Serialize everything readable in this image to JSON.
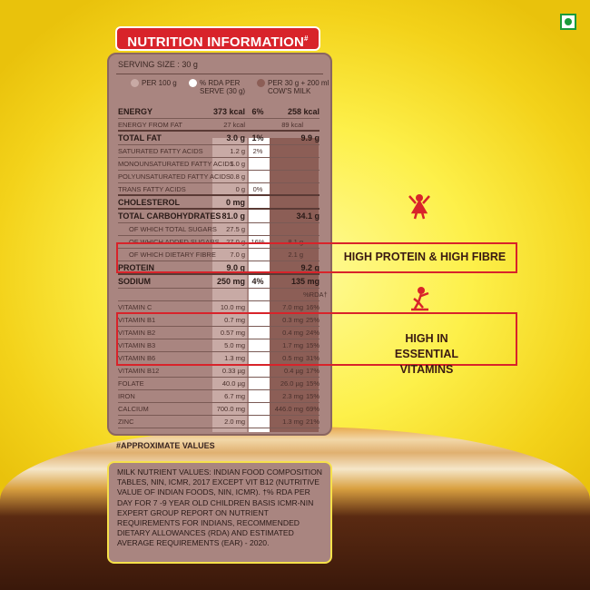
{
  "title": "NUTRITION INFORMATION",
  "title_mark": "#",
  "serving_size": "SERVING SIZE : 30 g",
  "legend": [
    {
      "label": "PER 100 g",
      "color": "#c8aaa5"
    },
    {
      "label": "% RDA PER SERVE (30 g)",
      "color": "#ffffff"
    },
    {
      "label": "PER 30 g + 200 ml COW'S MILK",
      "color": "#8c5e56"
    }
  ],
  "rows": [
    {
      "label": "ENERGY",
      "per100": "373 kcal",
      "rda": "6%",
      "milk": "258 kcal",
      "milk_rda": "",
      "style": "b"
    },
    {
      "label": "ENERGY FROM FAT",
      "per100": "27 kcal",
      "rda": "",
      "milk": "89 kcal",
      "milk_rda": "",
      "style": "thick"
    },
    {
      "label": "TOTAL FAT",
      "per100": "3.0 g",
      "rda": "1%",
      "milk": "9.9 g",
      "milk_rda": "",
      "style": "b"
    },
    {
      "label": "SATURATED FATTY ACIDS",
      "per100": "1.2 g",
      "rda": "2%",
      "milk": "",
      "milk_rda": "",
      "style": ""
    },
    {
      "label": "MONOUNSATURATED FATTY ACIDS",
      "per100": "1.0 g",
      "rda": "",
      "milk": "",
      "milk_rda": "",
      "style": ""
    },
    {
      "label": "POLYUNSATURATED FATTY ACIDS",
      "per100": "0.8 g",
      "rda": "",
      "milk": "",
      "milk_rda": "",
      "style": ""
    },
    {
      "label": "TRANS FATTY ACIDS",
      "per100": "0 g",
      "rda": "0%",
      "milk": "",
      "milk_rda": "",
      "style": "thick"
    },
    {
      "label": "CHOLESTEROL",
      "per100": "0 mg",
      "rda": "",
      "milk": "",
      "milk_rda": "",
      "style": "b thick"
    },
    {
      "label": "TOTAL CARBOHYDRATES",
      "per100": "81.0 g",
      "rda": "",
      "milk": "34.1 g",
      "milk_rda": "",
      "style": "b"
    },
    {
      "label": "OF WHICH TOTAL SUGARS",
      "per100": "27.5 g",
      "rda": "",
      "milk": "",
      "milk_rda": "",
      "style": "sub"
    },
    {
      "label": "OF WHICH ADDED SUGARS",
      "per100": "27.0 g",
      "rda": "16%",
      "milk": "8.1 g",
      "milk_rda": "",
      "style": "sub"
    },
    {
      "label": "OF WHICH DIETARY FIBRE",
      "per100": "7.0 g",
      "rda": "",
      "milk": "2.1 g",
      "milk_rda": "",
      "style": "sub"
    },
    {
      "label": "PROTEIN",
      "per100": "9.0 g",
      "rda": "",
      "milk": "9.2 g",
      "milk_rda": "",
      "style": "b thick"
    },
    {
      "label": "SODIUM",
      "per100": "250 mg",
      "rda": "4%",
      "milk": "135 mg",
      "milk_rda": "",
      "style": "b"
    },
    {
      "label": "",
      "per100": "",
      "rda": "",
      "milk": "",
      "milk_rda": "%RDA†",
      "style": ""
    },
    {
      "label": "VITAMIN C",
      "per100": "10.0 mg",
      "rda": "",
      "milk": "7.0 mg",
      "milk_rda": "16%",
      "style": ""
    },
    {
      "label": "VITAMIN B1",
      "per100": "0.7 mg",
      "rda": "",
      "milk": "0.3 mg",
      "milk_rda": "25%",
      "style": ""
    },
    {
      "label": "VITAMIN B2",
      "per100": "0.57 mg",
      "rda": "",
      "milk": "0.4 mg",
      "milk_rda": "24%",
      "style": ""
    },
    {
      "label": "VITAMIN B3",
      "per100": "5.0 mg",
      "rda": "",
      "milk": "1.7 mg",
      "milk_rda": "15%",
      "style": ""
    },
    {
      "label": "VITAMIN B6",
      "per100": "1.3 mg",
      "rda": "",
      "milk": "0.5 mg",
      "milk_rda": "31%",
      "style": ""
    },
    {
      "label": "VITAMIN B12",
      "per100": "0.33 µg",
      "rda": "",
      "milk": "0.4 µg",
      "milk_rda": "17%",
      "style": ""
    },
    {
      "label": "FOLATE",
      "per100": "40.0 µg",
      "rda": "",
      "milk": "26.0 µg",
      "milk_rda": "15%",
      "style": ""
    },
    {
      "label": "IRON",
      "per100": "6.7 mg",
      "rda": "",
      "milk": "2.3 mg",
      "milk_rda": "15%",
      "style": ""
    },
    {
      "label": "CALCIUM",
      "per100": "700.0 mg",
      "rda": "",
      "milk": "446.0 mg",
      "milk_rda": "69%",
      "style": ""
    },
    {
      "label": "ZINC",
      "per100": "2.0 mg",
      "rda": "",
      "milk": "1.3 mg",
      "milk_rda": "21%",
      "style": ""
    }
  ],
  "approx": "#APPROXIMATE VALUES",
  "note": "MILK NUTRIENT VALUES: INDIAN FOOD COMPOSITION TABLES, NIN, ICMR, 2017 EXCEPT VIT B12 (NUTRITIVE VALUE OF INDIAN FOODS, NIN, ICMR). †% RDA PER DAY FOR 7 -9 YEAR OLD CHILDREN BASIS ICMR-NIN EXPERT GROUP REPORT ON NUTRIENT REQUIREMENTS FOR INDIANS, RECOMMENDED DIETARY ALLOWANCES (RDA) AND ESTIMATED AVERAGE REQUIREMENTS (EAR) - 2020.",
  "callouts": {
    "protein": "HIGH PROTEIN & HIGH FIBRE",
    "vitamins": "HIGH IN ESSENTIAL VITAMINS"
  },
  "icons": {
    "veg": "veg-mark-icon",
    "hero": "superhero-icon",
    "skater": "skateboard-kid-icon"
  },
  "colors": {
    "accent": "#d8232a",
    "card": "#a98580",
    "veg": "#1a9a3a"
  }
}
